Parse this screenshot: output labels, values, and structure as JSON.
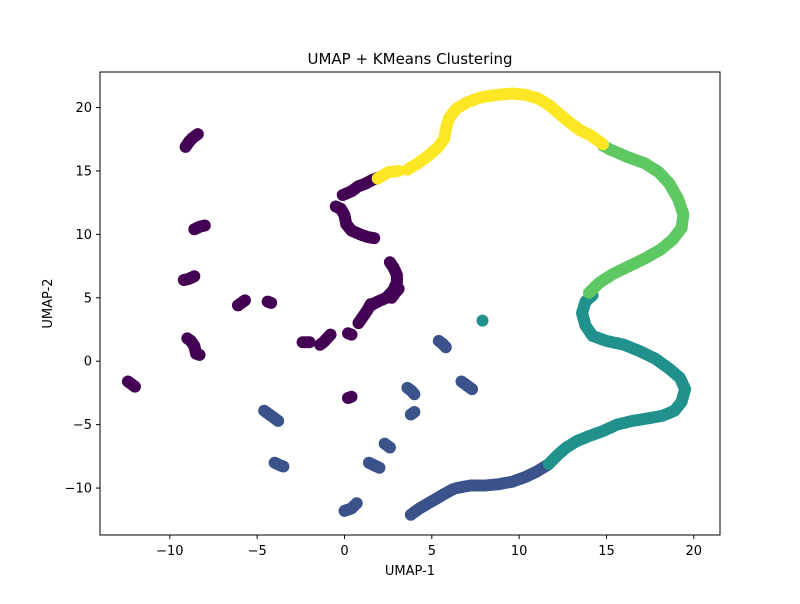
{
  "chart_data": {
    "type": "scatter",
    "title": "UMAP + KMeans Clustering",
    "xlabel": "UMAP-1",
    "ylabel": "UMAP-2",
    "xlim": [
      -14.0,
      21.5
    ],
    "ylim": [
      -13.7,
      22.8
    ],
    "x_ticks": [
      -10,
      -5,
      0,
      5,
      10,
      15,
      20
    ],
    "y_ticks": [
      -10,
      -5,
      0,
      5,
      10,
      15,
      20
    ],
    "grid": false,
    "legend": "none",
    "series": [
      {
        "color": "#440154",
        "segments": [
          [
            [
              -9.1,
              16.9
            ],
            [
              -8.9,
              17.3
            ],
            [
              -8.7,
              17.6
            ],
            [
              -8.4,
              17.9
            ]
          ],
          [
            [
              -8.6,
              10.4
            ],
            [
              -8.3,
              10.6
            ],
            [
              -8.0,
              10.7
            ]
          ],
          [
            [
              -9.2,
              6.4
            ],
            [
              -8.9,
              6.5
            ],
            [
              -8.6,
              6.7
            ]
          ],
          [
            [
              -6.1,
              4.4
            ],
            [
              -5.9,
              4.6
            ],
            [
              -5.7,
              4.8
            ]
          ],
          [
            [
              -4.4,
              4.7
            ],
            [
              -4.2,
              4.6
            ]
          ],
          [
            [
              -9.0,
              1.8
            ],
            [
              -8.8,
              1.6
            ],
            [
              -8.6,
              1.2
            ],
            [
              -8.5,
              0.6
            ],
            [
              -8.3,
              0.5
            ]
          ],
          [
            [
              -12.4,
              -1.6
            ],
            [
              -12.2,
              -1.8
            ],
            [
              -12.0,
              -2.0
            ]
          ],
          [
            [
              -2.4,
              1.5
            ],
            [
              -2.0,
              1.5
            ]
          ],
          [
            [
              -1.4,
              1.3
            ],
            [
              -1.2,
              1.5
            ],
            [
              -1.0,
              1.8
            ],
            [
              -0.8,
              2.1
            ]
          ],
          [
            [
              0.2,
              2.2
            ],
            [
              0.4,
              2.1
            ]
          ],
          [
            [
              0.4,
              -2.8
            ],
            [
              0.2,
              -2.9
            ]
          ],
          [
            [
              -0.5,
              12.2
            ],
            [
              -0.2,
              12.0
            ],
            [
              0.0,
              11.5
            ],
            [
              0.1,
              10.8
            ],
            [
              0.4,
              10.3
            ],
            [
              0.9,
              10.0
            ],
            [
              1.3,
              9.8
            ],
            [
              1.7,
              9.7
            ]
          ],
          [
            [
              -0.1,
              13.1
            ],
            [
              0.4,
              13.4
            ],
            [
              0.8,
              13.8
            ],
            [
              1.2,
              14.0
            ],
            [
              1.6,
              14.3
            ],
            [
              2.0,
              14.5
            ]
          ],
          [
            [
              2.6,
              7.8
            ],
            [
              2.8,
              7.4
            ],
            [
              3.0,
              6.8
            ],
            [
              3.0,
              6.2
            ],
            [
              2.8,
              5.6
            ],
            [
              2.4,
              5.0
            ],
            [
              1.9,
              4.7
            ],
            [
              1.5,
              4.4
            ]
          ],
          [
            [
              3.1,
              5.7
            ],
            [
              2.9,
              5.4
            ],
            [
              2.7,
              5.0
            ]
          ],
          [
            [
              1.5,
              4.5
            ],
            [
              1.3,
              4.0
            ],
            [
              1.0,
              3.4
            ],
            [
              0.8,
              3.0
            ]
          ]
        ]
      },
      {
        "color": "#3b528b",
        "segments": [
          [
            [
              5.4,
              1.6
            ],
            [
              5.6,
              1.4
            ],
            [
              5.8,
              1.1
            ]
          ],
          [
            [
              3.6,
              -2.1
            ],
            [
              3.8,
              -2.3
            ],
            [
              4.0,
              -2.6
            ]
          ],
          [
            [
              6.7,
              -1.6
            ],
            [
              7.0,
              -1.9
            ],
            [
              7.3,
              -2.2
            ]
          ],
          [
            [
              -4.6,
              -3.9
            ],
            [
              -4.3,
              -4.2
            ],
            [
              -4.0,
              -4.5
            ],
            [
              -3.8,
              -4.7
            ]
          ],
          [
            [
              4.0,
              -4.0
            ],
            [
              3.8,
              -4.2
            ]
          ],
          [
            [
              2.3,
              -6.5
            ],
            [
              2.6,
              -6.8
            ]
          ],
          [
            [
              -4.0,
              -8.0
            ],
            [
              -3.7,
              -8.2
            ],
            [
              -3.5,
              -8.3
            ]
          ],
          [
            [
              1.4,
              -8.0
            ],
            [
              1.7,
              -8.2
            ],
            [
              2.0,
              -8.4
            ]
          ],
          [
            [
              0.0,
              -11.8
            ],
            [
              0.4,
              -11.6
            ],
            [
              0.7,
              -11.2
            ]
          ],
          [
            [
              3.8,
              -12.1
            ],
            [
              4.3,
              -11.6
            ],
            [
              4.8,
              -11.2
            ],
            [
              5.3,
              -10.8
            ],
            [
              5.8,
              -10.4
            ],
            [
              6.2,
              -10.1
            ]
          ],
          [
            [
              6.4,
              -10.0
            ],
            [
              7.2,
              -9.8
            ],
            [
              8.0,
              -9.8
            ],
            [
              8.8,
              -9.7
            ],
            [
              9.6,
              -9.5
            ],
            [
              10.4,
              -9.1
            ],
            [
              11.0,
              -8.7
            ],
            [
              11.6,
              -8.2
            ]
          ]
        ]
      },
      {
        "color": "#21918c",
        "segments": [
          [
            [
              7.9,
              3.2
            ]
          ],
          [
            [
              11.7,
              -8.1
            ],
            [
              12.2,
              -7.4
            ],
            [
              12.7,
              -6.8
            ],
            [
              13.3,
              -6.3
            ],
            [
              14.0,
              -5.9
            ],
            [
              14.8,
              -5.5
            ],
            [
              15.6,
              -5.0
            ],
            [
              16.5,
              -4.7
            ],
            [
              17.4,
              -4.5
            ],
            [
              18.2,
              -4.3
            ],
            [
              18.9,
              -3.9
            ],
            [
              19.3,
              -3.2
            ],
            [
              19.5,
              -2.2
            ],
            [
              19.2,
              -1.3
            ],
            [
              18.6,
              -0.6
            ],
            [
              17.8,
              0.2
            ],
            [
              16.9,
              0.8
            ],
            [
              16.0,
              1.3
            ],
            [
              15.0,
              1.6
            ],
            [
              14.2,
              2.0
            ],
            [
              13.8,
              2.8
            ],
            [
              13.6,
              3.8
            ],
            [
              13.8,
              4.7
            ],
            [
              14.2,
              5.2
            ]
          ]
        ]
      },
      {
        "color": "#5ec962",
        "segments": [
          [
            [
              14.0,
              5.4
            ],
            [
              14.6,
              6.2
            ],
            [
              15.4,
              6.9
            ],
            [
              16.3,
              7.5
            ],
            [
              17.2,
              8.1
            ],
            [
              18.1,
              8.8
            ],
            [
              18.8,
              9.6
            ],
            [
              19.3,
              10.5
            ],
            [
              19.4,
              11.6
            ],
            [
              19.1,
              12.8
            ],
            [
              18.6,
              14.0
            ],
            [
              18.0,
              14.9
            ],
            [
              17.2,
              15.6
            ],
            [
              16.2,
              16.1
            ],
            [
              15.2,
              16.7
            ],
            [
              14.8,
              17.0
            ]
          ]
        ]
      },
      {
        "color": "#fde725",
        "segments": [
          [
            [
              1.9,
              14.4
            ],
            [
              2.5,
              14.9
            ],
            [
              3.1,
              15.0
            ]
          ],
          [
            [
              3.6,
              15.1
            ],
            [
              4.2,
              15.6
            ],
            [
              4.8,
              16.2
            ],
            [
              5.3,
              16.8
            ],
            [
              5.7,
              17.5
            ],
            [
              5.8,
              18.3
            ],
            [
              6.0,
              19.2
            ],
            [
              6.4,
              19.9
            ],
            [
              7.0,
              20.4
            ],
            [
              7.8,
              20.8
            ],
            [
              8.7,
              21.0
            ],
            [
              9.6,
              21.1
            ],
            [
              10.4,
              21.0
            ],
            [
              11.1,
              20.7
            ],
            [
              11.7,
              20.2
            ],
            [
              12.3,
              19.5
            ],
            [
              12.9,
              18.8
            ],
            [
              13.5,
              18.2
            ],
            [
              14.1,
              17.8
            ],
            [
              14.6,
              17.3
            ],
            [
              14.8,
              17.1
            ]
          ]
        ]
      }
    ]
  }
}
